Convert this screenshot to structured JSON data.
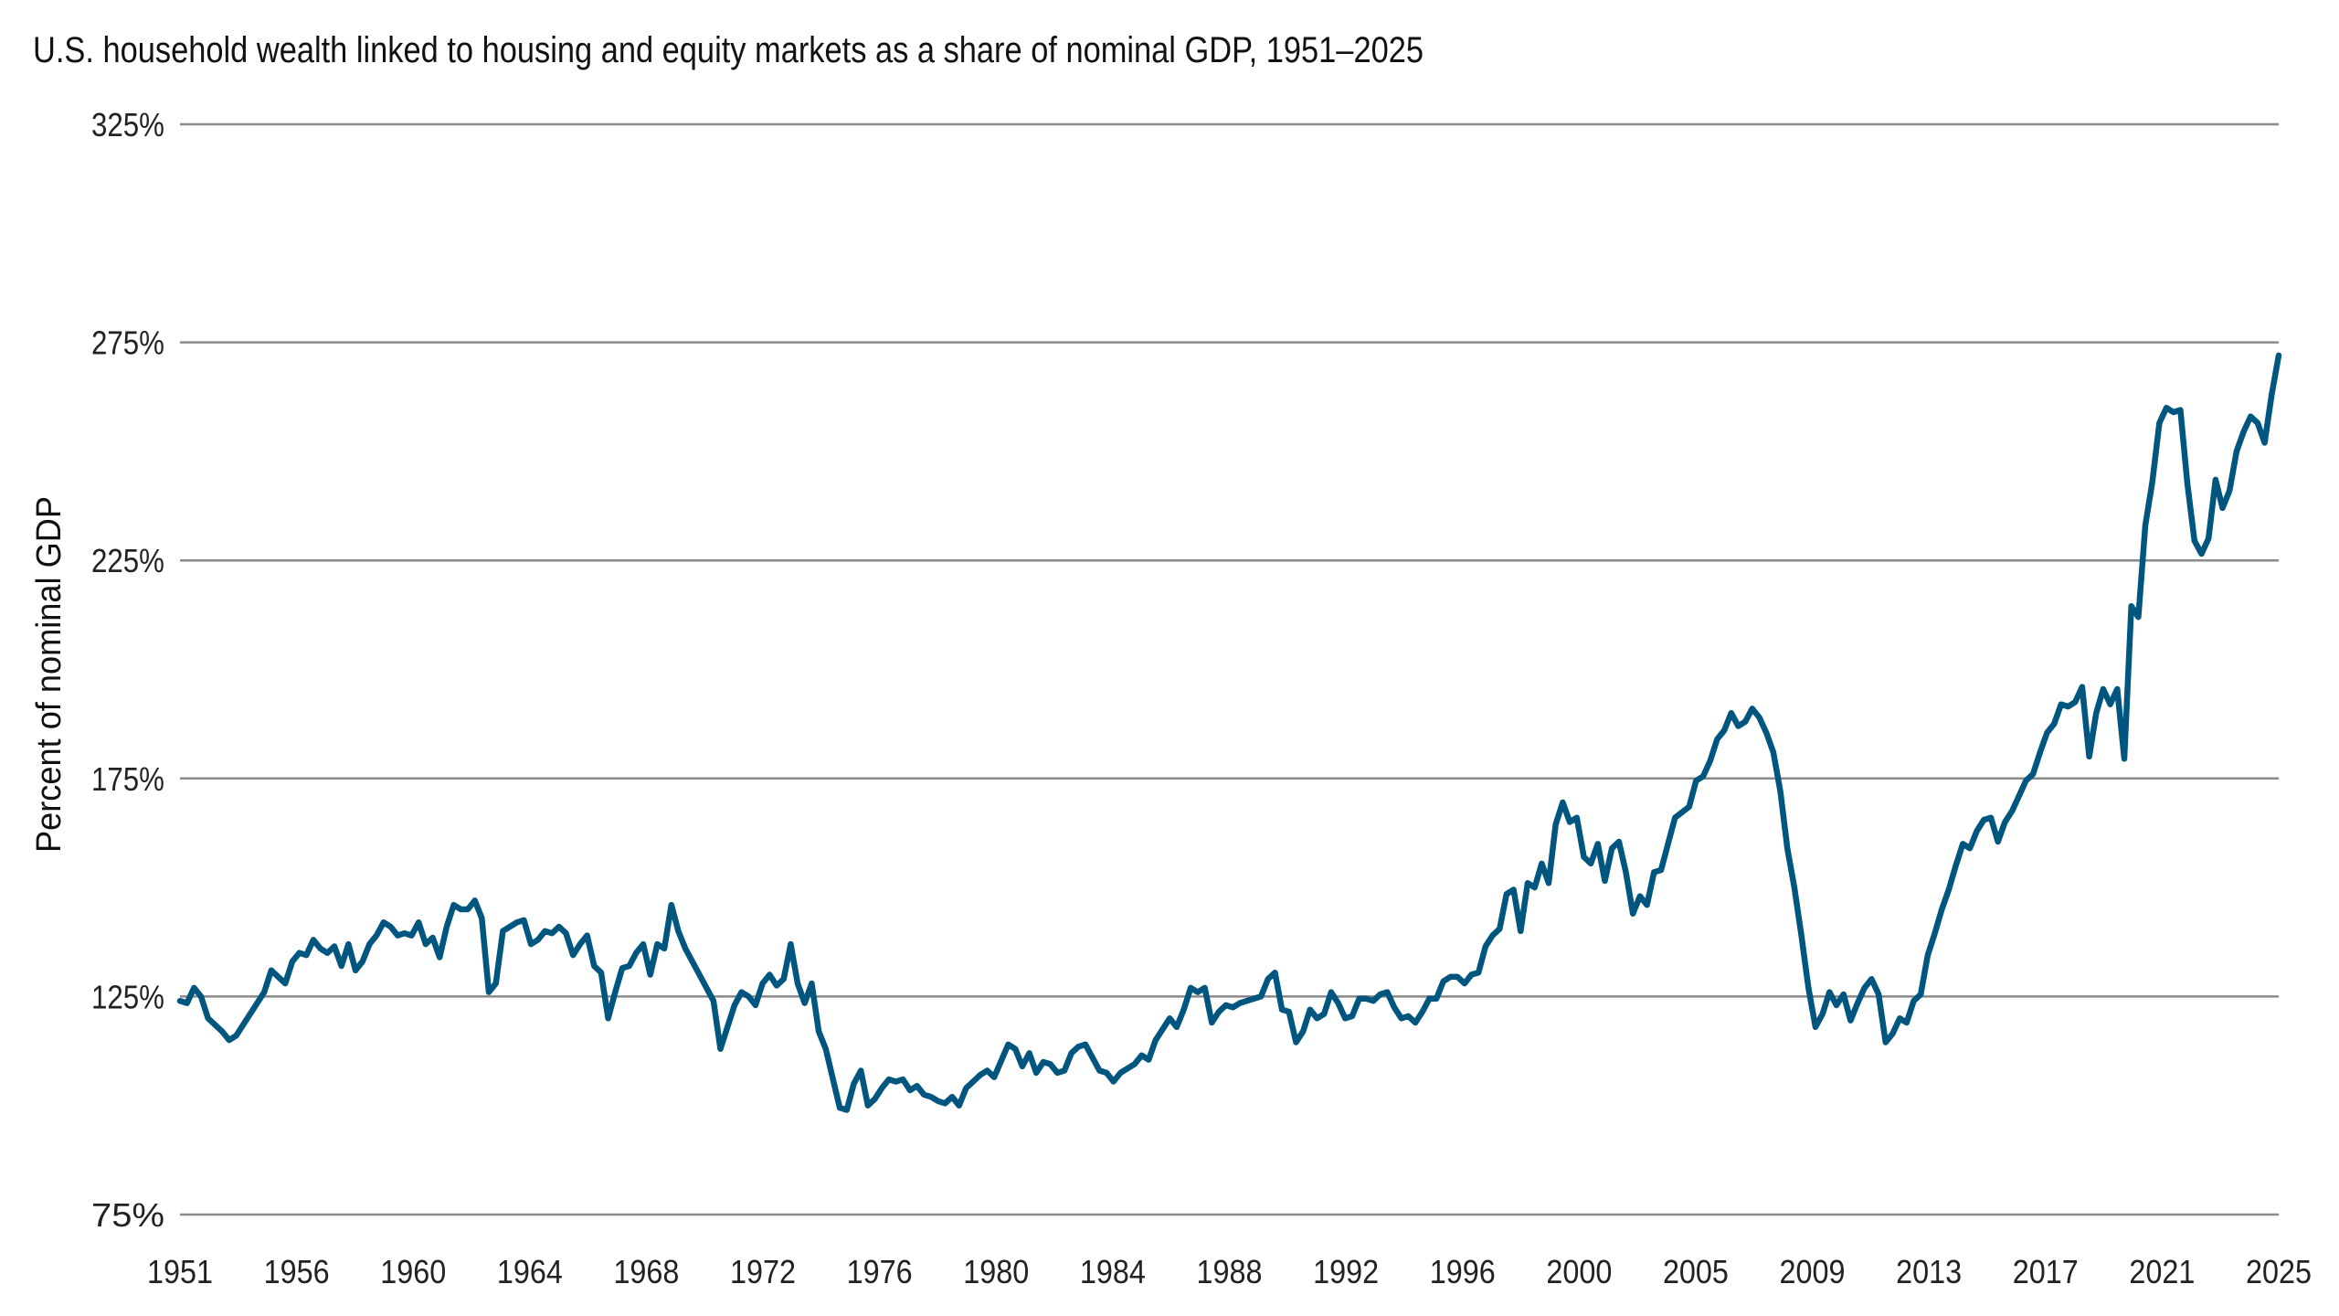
{
  "chart_data": {
    "type": "line",
    "title": "U.S. household wealth linked to housing and equity markets as a share of nominal GDP, 1951–2025",
    "xlabel": "",
    "ylabel": "Percent of nominal GDP",
    "ylim": [
      75,
      325
    ],
    "xlim": [
      1951,
      2025.75
    ],
    "yticks": [
      75,
      125,
      175,
      225,
      275,
      325
    ],
    "ytick_labels": [
      "75%",
      "125%",
      "175%",
      "225%",
      "275%",
      "325%"
    ],
    "xtick_labels": [
      "1951",
      "1956",
      "1960",
      "1964",
      "1968",
      "1972",
      "1976",
      "1980",
      "1984",
      "1988",
      "1992",
      "1996",
      "2000",
      "2005",
      "2009",
      "2013",
      "2017",
      "2021",
      "2025"
    ],
    "grid": "horizontal",
    "line_color": "#00567f",
    "series": [
      {
        "x": [
          1951.0,
          1951.25,
          1951.5,
          1951.75,
          1952.0,
          1952.5,
          1952.75,
          1953.0,
          1953.5,
          1954.0,
          1954.25,
          1954.75,
          1955.0,
          1955.25,
          1955.5,
          1955.75,
          1956.0,
          1956.25,
          1956.5,
          1956.75,
          1957.0,
          1957.25,
          1957.5,
          1957.75,
          1958.0,
          1958.25,
          1958.5,
          1958.75,
          1959.0,
          1959.25,
          1959.5,
          1959.75,
          1960.0,
          1960.25,
          1960.5,
          1960.75,
          1961.0,
          1961.25,
          1961.5,
          1961.75,
          1962.0,
          1962.25,
          1962.5,
          1962.75,
          1963.0,
          1963.25,
          1963.5,
          1963.75,
          1964.0,
          1964.25,
          1964.5,
          1964.75,
          1965.0,
          1965.25,
          1965.5,
          1965.75,
          1966.0,
          1966.25,
          1966.5,
          1966.75,
          1967.0,
          1967.25,
          1967.5,
          1967.75,
          1968.0,
          1968.25,
          1968.5,
          1968.75,
          1969.0,
          1969.5,
          1970.0,
          1970.25,
          1970.75,
          1971.0,
          1971.25,
          1971.5,
          1971.75,
          1972.0,
          1972.25,
          1972.5,
          1972.75,
          1973.0,
          1973.25,
          1973.5,
          1973.75,
          1974.0,
          1974.5,
          1974.75,
          1975.0,
          1975.25,
          1975.5,
          1975.75,
          1976.0,
          1976.25,
          1976.5,
          1976.75,
          1977.0,
          1977.25,
          1977.5,
          1977.75,
          1978.0,
          1978.25,
          1978.5,
          1978.75,
          1979.0,
          1979.25,
          1979.5,
          1979.75,
          1980.0,
          1980.5,
          1980.75,
          1981.0,
          1981.25,
          1981.5,
          1981.75,
          1982.0,
          1982.25,
          1982.5,
          1982.75,
          1983.0,
          1983.25,
          1983.75,
          1984.0,
          1984.25,
          1984.5,
          1984.75,
          1985.0,
          1985.25,
          1985.5,
          1985.75,
          1986.0,
          1986.25,
          1986.5,
          1986.75,
          1987.0,
          1987.25,
          1987.5,
          1987.75,
          1988.0,
          1988.25,
          1988.5,
          1988.75,
          1989.0,
          1989.5,
          1989.75,
          1990.0,
          1990.25,
          1990.5,
          1990.75,
          1991.0,
          1991.25,
          1991.5,
          1991.75,
          1992.0,
          1992.25,
          1992.5,
          1992.75,
          1993.0,
          1993.25,
          1993.5,
          1993.75,
          1994.0,
          1994.25,
          1994.5,
          1994.75,
          1995.0,
          1995.25,
          1995.5,
          1995.75,
          1996.0,
          1996.25,
          1996.5,
          1996.75,
          1997.0,
          1997.25,
          1997.5,
          1997.75,
          1998.0,
          1998.25,
          1998.5,
          1998.75,
          1999.0,
          1999.25,
          1999.5,
          1999.75,
          2000.0,
          2000.25,
          2000.5,
          2000.75,
          2001.0,
          2001.25,
          2001.5,
          2001.75,
          2002.0,
          2002.25,
          2002.5,
          2002.75,
          2003.0,
          2003.25,
          2003.5,
          2003.75,
          2004.0,
          2004.25,
          2004.75,
          2005.0,
          2005.25,
          2005.5,
          2005.75,
          2006.0,
          2006.25,
          2006.5,
          2006.75,
          2007.0,
          2007.25,
          2007.5,
          2007.75,
          2008.0,
          2008.25,
          2008.5,
          2008.75,
          2009.0,
          2009.25,
          2009.5,
          2009.75,
          2010.0,
          2010.25,
          2010.5,
          2010.75,
          2011.0,
          2011.25,
          2011.5,
          2011.75,
          2012.0,
          2012.25,
          2012.5,
          2012.75,
          2013.0,
          2013.25,
          2013.5,
          2013.75,
          2014.0,
          2014.25,
          2014.5,
          2014.75,
          2015.0,
          2015.25,
          2015.5,
          2015.75,
          2016.0,
          2016.25,
          2016.5,
          2016.75,
          2017.0,
          2017.25,
          2017.5,
          2017.75,
          2018.0,
          2018.25,
          2018.5,
          2018.75,
          2019.0,
          2019.25,
          2019.5,
          2019.75,
          2020.0,
          2020.25,
          2020.5,
          2020.75,
          2021.0,
          2021.25,
          2021.5,
          2021.75,
          2022.0,
          2022.25,
          2022.5,
          2022.75,
          2023.0,
          2023.25,
          2023.5,
          2023.75,
          2024.0,
          2024.25,
          2024.5,
          2024.75,
          2025.0,
          2025.25,
          2025.5,
          2025.75
        ],
        "values": [
          124,
          123.5,
          127,
          125,
          120,
          117,
          115,
          116,
          121,
          126,
          131,
          128,
          133,
          135,
          134.5,
          138,
          136,
          135,
          136.5,
          132,
          137,
          131,
          133,
          137,
          139,
          142,
          141,
          139,
          139.5,
          139,
          142,
          137,
          138.5,
          134,
          141,
          146,
          145,
          145,
          147,
          143,
          126,
          128,
          140,
          141,
          142,
          142.5,
          137,
          138,
          140,
          139.5,
          141,
          139.5,
          134.5,
          137,
          139,
          132,
          130.5,
          120,
          126,
          131.5,
          132,
          135,
          137,
          130,
          137,
          136,
          146,
          140,
          136,
          130,
          124,
          113,
          123,
          126,
          125,
          123,
          128,
          130,
          127.5,
          129,
          137,
          128,
          123.5,
          128,
          117,
          113,
          99.5,
          99,
          105,
          108,
          100,
          101.5,
          104,
          106,
          105.5,
          106,
          103.5,
          104.5,
          102.5,
          102,
          101,
          100.5,
          102,
          100,
          104,
          105.5,
          107,
          108,
          106.5,
          114,
          113,
          109,
          112,
          107.5,
          110,
          109.5,
          107.5,
          108,
          112,
          113.5,
          114,
          108,
          107.5,
          105.5,
          107.5,
          108.5,
          109.5,
          111.5,
          110.5,
          115,
          117.5,
          120,
          118,
          122,
          127,
          126,
          127,
          119,
          121.5,
          123,
          122.5,
          123.5,
          124,
          125,
          129,
          130.5,
          122,
          121.5,
          114.5,
          117,
          122,
          120,
          121,
          126,
          123.5,
          120,
          120.5,
          124.5,
          124.5,
          124,
          125.5,
          126,
          122.5,
          120,
          120.5,
          119,
          121.5,
          124.5,
          124.5,
          128.5,
          129.5,
          129.5,
          128,
          130,
          130.5,
          136.5,
          139,
          140.5,
          148.5,
          149.5,
          140,
          151,
          150,
          155.5,
          151,
          164.5,
          169.5,
          165,
          166,
          157,
          155.5,
          160,
          151.5,
          159,
          160.5,
          153.5,
          144,
          148,
          146,
          153.5,
          154,
          160,
          166,
          168.5,
          174.5,
          175.5,
          179,
          184,
          186,
          190,
          187,
          188,
          191,
          189,
          185.5,
          181,
          172,
          159,
          150,
          139,
          127,
          118,
          121,
          126,
          123,
          125.5,
          119.5,
          123.5,
          127,
          129,
          125.5,
          114.5,
          116.5,
          120,
          119,
          124,
          125.5,
          134.5,
          139.5,
          145,
          149.5,
          155,
          160,
          159,
          163,
          165.5,
          166,
          160.5,
          165,
          167.5,
          171,
          174.5,
          176,
          181,
          185.5,
          187.5,
          192,
          191.5,
          192.5,
          196,
          180,
          190,
          195.5,
          192,
          195.5,
          179.5,
          214.5,
          212,
          233,
          243,
          256.5,
          260,
          259,
          259.5,
          242.5,
          229.5,
          226.5,
          230,
          243.5,
          237,
          241,
          250,
          254.5,
          258,
          256.5,
          252,
          263,
          272
        ]
      }
    ]
  }
}
